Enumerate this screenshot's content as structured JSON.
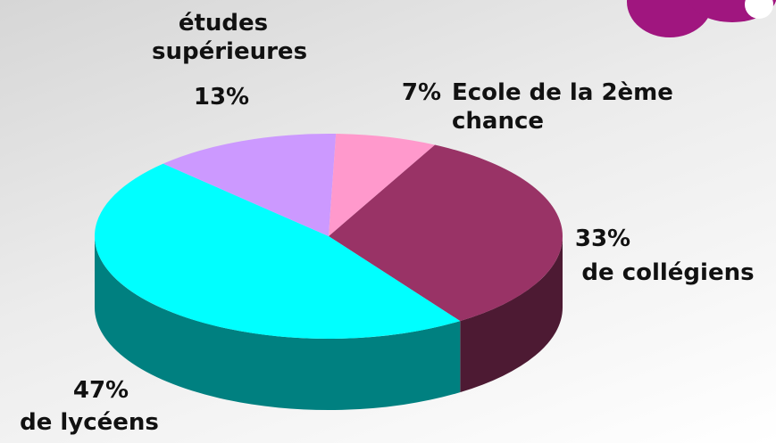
{
  "chart_data": {
    "type": "pie",
    "categories": [
      "de collégiens",
      "de lycéens",
      "études supérieures",
      "Ecole de la 2ème chance"
    ],
    "values": [
      33,
      47,
      13,
      7
    ],
    "value_labels": [
      "33%",
      "47%",
      "13%",
      "7%"
    ],
    "colors": [
      "#993366",
      "#00ffff",
      "#cc99ff",
      "#ff99cc"
    ]
  }
}
